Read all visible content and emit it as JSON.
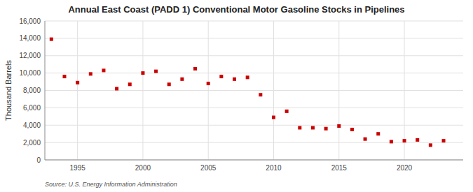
{
  "chart_data": {
    "type": "scatter",
    "title": "Annual East Coast (PADD 1) Conventional Motor Gasoline Stocks in Pipelines",
    "y_label": "Thousand Barrels",
    "annotations": [
      "Source: U.S. Energy Information Administration"
    ],
    "x": [
      1993,
      1994,
      1995,
      1996,
      1997,
      1998,
      1999,
      2000,
      2001,
      2002,
      2003,
      2004,
      2005,
      2006,
      2007,
      2008,
      2009,
      2010,
      2011,
      2012,
      2013,
      2014,
      2015,
      2016,
      2017,
      2018,
      2019,
      2020,
      2021,
      2022,
      2023
    ],
    "values": [
      13900,
      9600,
      8900,
      9900,
      10300,
      8200,
      8700,
      10000,
      10200,
      8700,
      9300,
      10500,
      8800,
      9600,
      9300,
      9500,
      7500,
      4900,
      5600,
      3700,
      3700,
      3600,
      3900,
      3500,
      2400,
      3000,
      2100,
      2200,
      2300,
      1700,
      2200
    ],
    "color": "#cc0000",
    "marker": "square",
    "xlim": [
      1992.5,
      2024.5
    ],
    "xticks": [
      1995,
      2000,
      2005,
      2010,
      2015,
      2020
    ],
    "ylim": [
      0,
      16000
    ],
    "yticks": [
      0,
      {
        "value": 2000,
        "label": "2,000"
      },
      {
        "value": 4000,
        "label": "4,000"
      },
      {
        "value": 6000,
        "label": "6,000"
      },
      {
        "value": 8000,
        "label": "8,000"
      },
      {
        "value": 10000,
        "label": "10,000"
      },
      {
        "value": 12000,
        "label": "12,000"
      },
      {
        "value": 14000,
        "label": "14,000"
      },
      {
        "value": 16000,
        "label": "16,000"
      }
    ],
    "grid": true
  }
}
